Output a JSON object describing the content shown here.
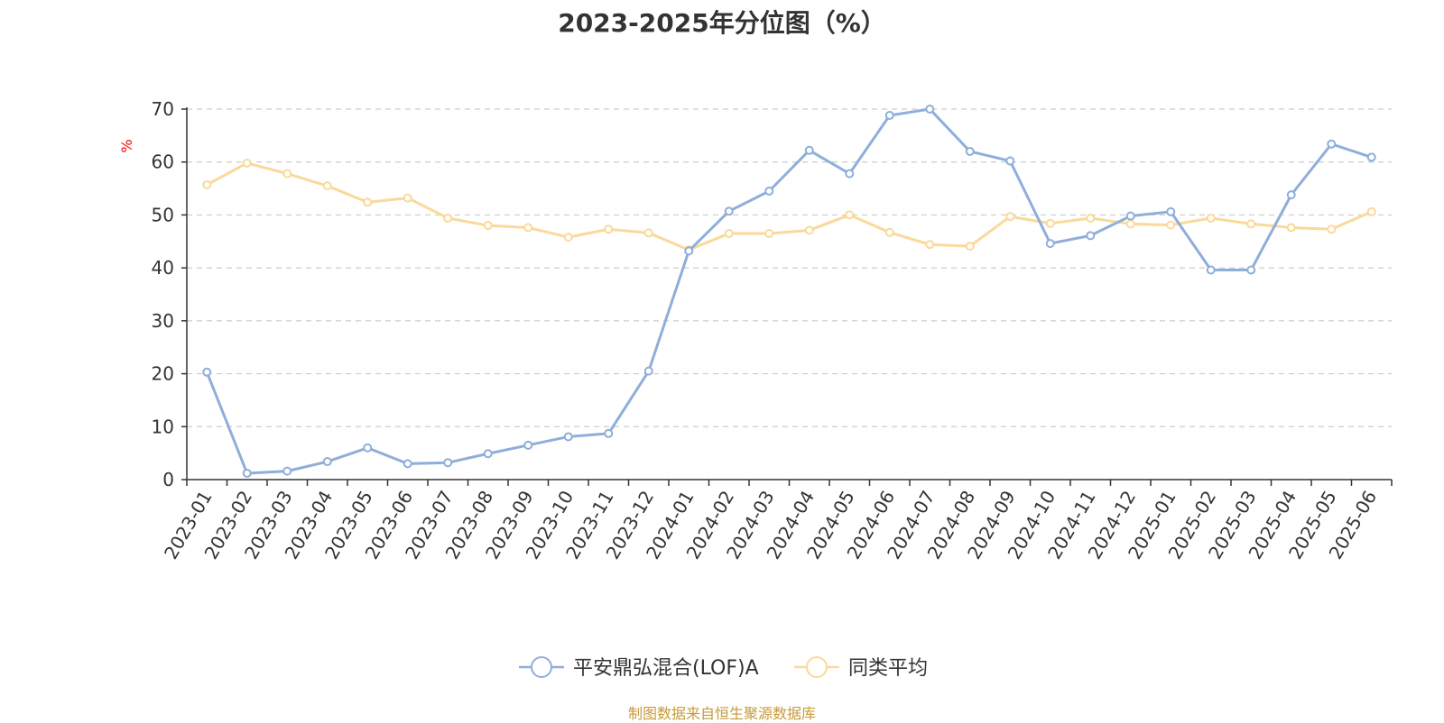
{
  "chart_data": {
    "type": "line",
    "title": "2023-2025年分位图（%）",
    "ylabel": "%",
    "xlabel": "",
    "ylim": [
      0,
      70
    ],
    "yticks": [
      0,
      10,
      20,
      30,
      40,
      50,
      60,
      70
    ],
    "grid": true,
    "legend_position": "bottom",
    "categories": [
      "2023-01",
      "2023-02",
      "2023-03",
      "2023-04",
      "2023-05",
      "2023-06",
      "2023-07",
      "2023-08",
      "2023-09",
      "2023-10",
      "2023-11",
      "2023-12",
      "2024-01",
      "2024-02",
      "2024-03",
      "2024-04",
      "2024-05",
      "2024-06",
      "2024-07",
      "2024-08",
      "2024-09",
      "2024-10",
      "2024-11",
      "2024-12",
      "2025-01",
      "2025-02",
      "2025-03",
      "2025-04",
      "2025-05",
      "2025-06"
    ],
    "series": [
      {
        "name": "平安鼎弘混合(LOF)A",
        "color": "#8eaedb",
        "values": [
          20.3,
          1.2,
          1.6,
          3.4,
          6.0,
          3.0,
          3.2,
          4.9,
          6.5,
          8.1,
          8.7,
          20.5,
          43.2,
          50.7,
          54.5,
          62.2,
          57.8,
          68.8,
          70.0,
          62.0,
          60.2,
          44.6,
          46.1,
          49.8,
          50.6,
          39.6,
          39.6,
          53.8,
          63.4,
          60.9
        ]
      },
      {
        "name": "同类平均",
        "color": "#fad99a",
        "values": [
          55.7,
          59.8,
          57.8,
          55.5,
          52.4,
          53.2,
          49.4,
          48.0,
          47.6,
          45.8,
          47.3,
          46.6,
          43.4,
          46.5,
          46.5,
          47.1,
          50.0,
          46.7,
          44.4,
          44.1,
          49.7,
          48.4,
          49.4,
          48.3,
          48.1,
          49.4,
          48.3,
          47.6,
          47.3,
          50.6
        ]
      }
    ]
  },
  "source_note": "制图数据来自恒生聚源数据库",
  "colors": {
    "axis": "#333333",
    "grid": "#cccccc",
    "ylabel": "#ff0000"
  }
}
